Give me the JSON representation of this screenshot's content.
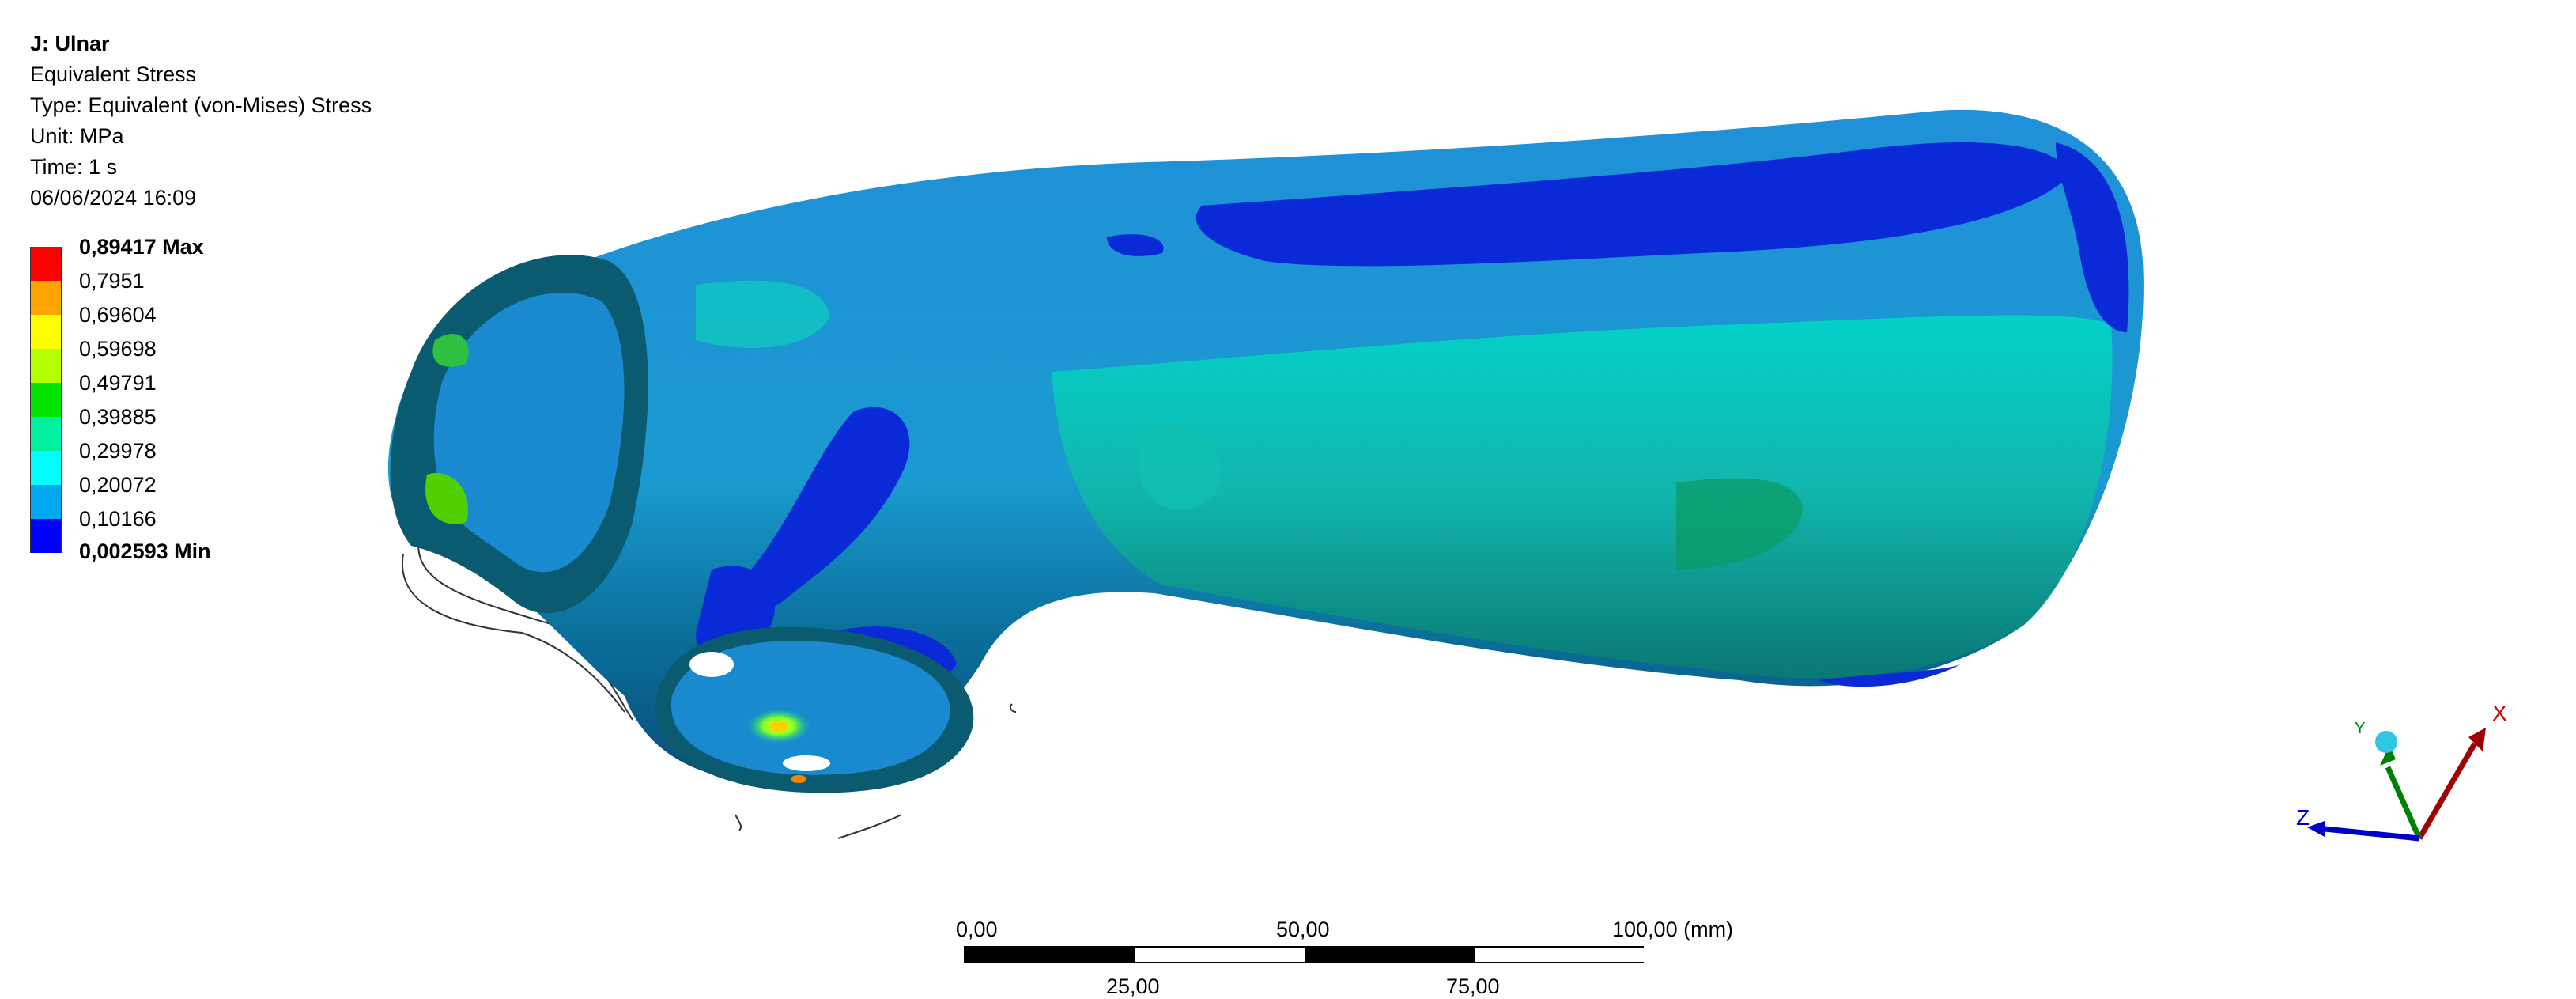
{
  "result": {
    "title": "J: Ulnar",
    "name": "Equivalent Stress",
    "type": "Type: Equivalent (von-Mises) Stress",
    "unit": "Unit: MPa",
    "time": "Time: 1 s",
    "date": "06/06/2024 16:09"
  },
  "legend": {
    "items": [
      {
        "label": "0,89417 Max",
        "color": "#ff0000"
      },
      {
        "label": "0,7951",
        "color": "#ffa500"
      },
      {
        "label": "0,69604",
        "color": "#ffff00"
      },
      {
        "label": "0,59698",
        "color": "#b4ff00"
      },
      {
        "label": "0,49791",
        "color": "#00e400"
      },
      {
        "label": "0,39885",
        "color": "#00f0a0"
      },
      {
        "label": "0,29978",
        "color": "#00ffff"
      },
      {
        "label": "0,20072",
        "color": "#00a8f0"
      },
      {
        "label": "0,10166",
        "color": "#0000ff"
      }
    ],
    "min_label": "0,002593 Min"
  },
  "scale_bar": {
    "top_labels": [
      "0,00",
      "50,00",
      "100,00 (mm)"
    ],
    "bottom_labels": [
      "25,00",
      "75,00"
    ]
  },
  "triad": {
    "x_label": "X",
    "y_label": "Y",
    "z_label": "Z",
    "x_color": "#a00000",
    "y_color": "#008000",
    "z_color": "#0000c8"
  }
}
